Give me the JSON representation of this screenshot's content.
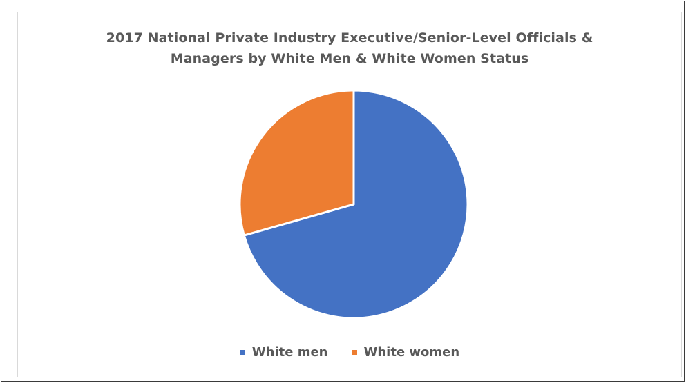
{
  "chart_data": {
    "type": "pie",
    "title_lines": [
      "2017 National Private Industry Executive/Senior-Level Officials &",
      "Managers by White Men & White Women Status"
    ],
    "series": [
      {
        "name": "White men",
        "value": 70.6,
        "color": "#4472C4"
      },
      {
        "name": "White women",
        "value": 29.4,
        "color": "#ED7D31"
      }
    ],
    "legend_position": "bottom",
    "start_angle_deg": 0,
    "direction": "clockwise"
  }
}
